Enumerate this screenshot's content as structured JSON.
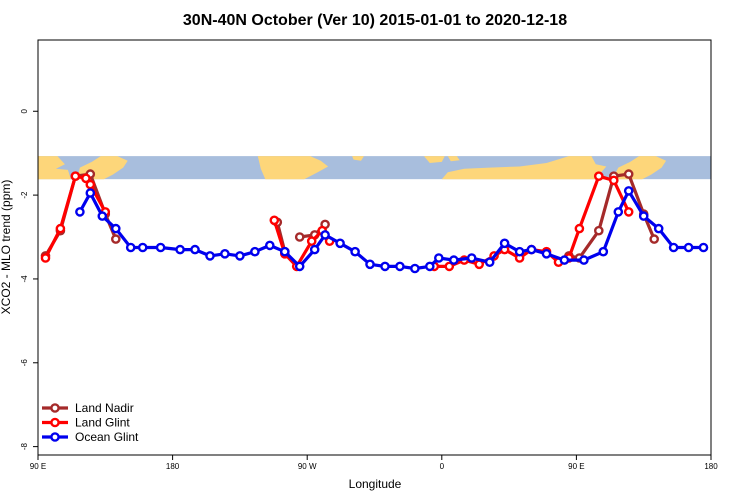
{
  "chart_data": {
    "type": "line",
    "title": "30N-40N October (Ver 10)   2015-01-01 to 2020-12-18",
    "xlabel": "Longitude",
    "ylabel": "XCO2 - MLO trend (ppm)",
    "xlim": [
      90,
      540
    ],
    "ylim": [
      -8.2,
      1.7
    ],
    "x_ticks": [
      {
        "value": 90,
        "label": "90 E"
      },
      {
        "value": 180,
        "label": "180"
      },
      {
        "value": 270,
        "label": "90 W"
      },
      {
        "value": 360,
        "label": "0"
      },
      {
        "value": 450,
        "label": "90 E"
      },
      {
        "value": 540,
        "label": "180"
      }
    ],
    "y_ticks": [
      {
        "value": 0,
        "label": "0"
      },
      {
        "value": -2,
        "label": "-2"
      },
      {
        "value": -4,
        "label": "-4"
      },
      {
        "value": -6,
        "label": "-6"
      },
      {
        "value": -8,
        "label": "-8"
      }
    ],
    "map_strip": {
      "y_top": -1.07,
      "y_bottom": -1.62,
      "ocean_color": "#a8bedd",
      "land_color": "#fdd67a"
    },
    "legend_position": "bottom-left",
    "series": [
      {
        "name": "Land Nadir",
        "color": "#a52a2a",
        "segments": [
          [
            [
              95,
              -3.45
            ],
            [
              105,
              -2.85
            ],
            [
              115,
              -1.55
            ],
            [
              125,
              -1.5
            ],
            [
              135,
              -2.45
            ],
            [
              142,
              -3.05
            ]
          ],
          [
            [
              250,
              -2.65
            ],
            [
              255,
              -3.35
            ]
          ],
          [
            [
              265,
              -3.0
            ],
            [
              275,
              -2.95
            ],
            [
              282,
              -2.7
            ]
          ],
          [
            [
              445,
              -3.45
            ],
            [
              452,
              -3.5
            ],
            [
              465,
              -2.85
            ],
            [
              475,
              -1.55
            ],
            [
              485,
              -1.5
            ],
            [
              495,
              -2.45
            ],
            [
              502,
              -3.05
            ]
          ]
        ]
      },
      {
        "name": "Land Glint",
        "color": "#ff0000",
        "segments": [
          [
            [
              95,
              -3.5
            ],
            [
              105,
              -2.8
            ],
            [
              115,
              -1.55
            ],
            [
              122,
              -1.6
            ],
            [
              125,
              -1.75
            ],
            [
              135,
              -2.4
            ]
          ],
          [
            [
              248,
              -2.6
            ],
            [
              255,
              -3.4
            ],
            [
              263,
              -3.7
            ],
            [
              273,
              -3.1
            ],
            [
              280,
              -2.85
            ],
            [
              285,
              -3.1
            ]
          ],
          [
            [
              355,
              -3.7
            ],
            [
              365,
              -3.7
            ],
            [
              375,
              -3.55
            ],
            [
              385,
              -3.65
            ],
            [
              395,
              -3.45
            ],
            [
              402,
              -3.3
            ],
            [
              412,
              -3.5
            ],
            [
              420,
              -3.3
            ],
            [
              430,
              -3.35
            ],
            [
              438,
              -3.6
            ],
            [
              445,
              -3.5
            ],
            [
              452,
              -2.8
            ],
            [
              465,
              -1.55
            ],
            [
              475,
              -1.65
            ],
            [
              485,
              -2.4
            ]
          ]
        ]
      },
      {
        "name": "Ocean Glint",
        "color": "#0000ee",
        "segments": [
          [
            [
              118,
              -2.4
            ],
            [
              125,
              -1.95
            ],
            [
              133,
              -2.5
            ],
            [
              142,
              -2.8
            ],
            [
              152,
              -3.25
            ],
            [
              160,
              -3.25
            ],
            [
              172,
              -3.25
            ],
            [
              185,
              -3.3
            ],
            [
              195,
              -3.3
            ],
            [
              205,
              -3.45
            ],
            [
              215,
              -3.4
            ],
            [
              225,
              -3.45
            ],
            [
              235,
              -3.35
            ],
            [
              245,
              -3.2
            ],
            [
              255,
              -3.35
            ],
            [
              265,
              -3.7
            ],
            [
              275,
              -3.3
            ],
            [
              282,
              -2.95
            ],
            [
              292,
              -3.15
            ],
            [
              302,
              -3.35
            ],
            [
              312,
              -3.65
            ],
            [
              322,
              -3.7
            ],
            [
              332,
              -3.7
            ],
            [
              342,
              -3.75
            ],
            [
              352,
              -3.7
            ],
            [
              358,
              -3.5
            ],
            [
              368,
              -3.55
            ],
            [
              380,
              -3.5
            ],
            [
              392,
              -3.6
            ],
            [
              402,
              -3.15
            ],
            [
              412,
              -3.35
            ],
            [
              420,
              -3.3
            ],
            [
              430,
              -3.4
            ],
            [
              442,
              -3.55
            ],
            [
              455,
              -3.55
            ],
            [
              468,
              -3.35
            ],
            [
              478,
              -2.4
            ],
            [
              485,
              -1.9
            ],
            [
              495,
              -2.5
            ],
            [
              505,
              -2.8
            ],
            [
              515,
              -3.25
            ],
            [
              525,
              -3.25
            ],
            [
              535,
              -3.25
            ]
          ]
        ]
      }
    ]
  }
}
